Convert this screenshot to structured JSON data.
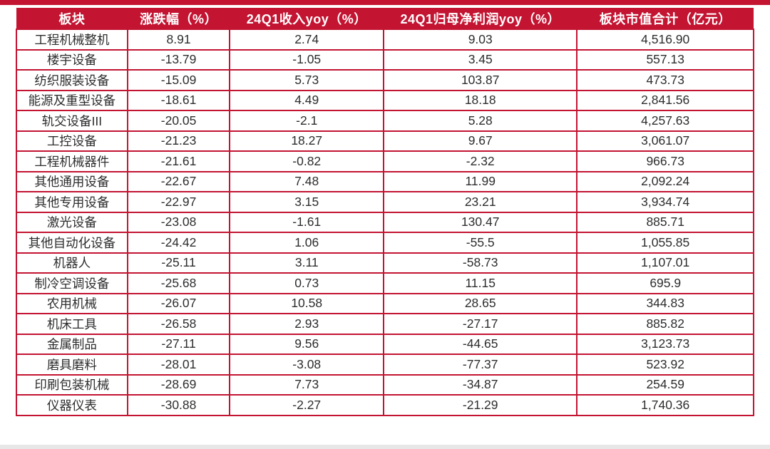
{
  "page": {
    "accent_red": "#c31432",
    "background": "#ffffff",
    "bottom_strip_color": "#e7e7e7",
    "header_text_color": "#ffffff",
    "body_text_color": "#2d2d2d"
  },
  "table": {
    "columns": [
      "板块",
      "涨跌幅（%）",
      "24Q1收入yoy（%）",
      "24Q1归母净利润yoy（%）",
      "板块市值合计（亿元）"
    ],
    "rows": [
      [
        "工程机械整机",
        "8.91",
        "2.74",
        "9.03",
        "4,516.90"
      ],
      [
        "楼宇设备",
        "-13.79",
        "-1.05",
        "3.45",
        "557.13"
      ],
      [
        "纺织服装设备",
        "-15.09",
        "5.73",
        "103.87",
        "473.73"
      ],
      [
        "能源及重型设备",
        "-18.61",
        "4.49",
        "18.18",
        "2,841.56"
      ],
      [
        "轨交设备III",
        "-20.05",
        "-2.1",
        "5.28",
        "4,257.63"
      ],
      [
        "工控设备",
        "-21.23",
        "18.27",
        "9.67",
        "3,061.07"
      ],
      [
        "工程机械器件",
        "-21.61",
        "-0.82",
        "-2.32",
        "966.73"
      ],
      [
        "其他通用设备",
        "-22.67",
        "7.48",
        "11.99",
        "2,092.24"
      ],
      [
        "其他专用设备",
        "-22.97",
        "3.15",
        "23.21",
        "3,934.74"
      ],
      [
        "激光设备",
        "-23.08",
        "-1.61",
        "130.47",
        "885.71"
      ],
      [
        "其他自动化设备",
        "-24.42",
        "1.06",
        "-55.5",
        "1,055.85"
      ],
      [
        "机器人",
        "-25.11",
        "3.11",
        "-58.73",
        "1,107.01"
      ],
      [
        "制冷空调设备",
        "-25.68",
        "0.73",
        "11.15",
        "695.9"
      ],
      [
        "农用机械",
        "-26.07",
        "10.58",
        "28.65",
        "344.83"
      ],
      [
        "机床工具",
        "-26.58",
        "2.93",
        "-27.17",
        "885.82"
      ],
      [
        "金属制品",
        "-27.11",
        "9.56",
        "-44.65",
        "3,123.73"
      ],
      [
        "磨具磨料",
        "-28.01",
        "-3.08",
        "-77.37",
        "523.92"
      ],
      [
        "印刷包装机械",
        "-28.69",
        "7.73",
        "-34.87",
        "254.59"
      ],
      [
        "仪器仪表",
        "-30.88",
        "-2.27",
        "-21.29",
        "1,740.36"
      ]
    ]
  },
  "chart_data": {
    "type": "table",
    "title": "",
    "columns": [
      "板块",
      "涨跌幅（%）",
      "24Q1收入yoy（%）",
      "24Q1归母净利润yoy（%）",
      "板块市值合计（亿元）"
    ],
    "rows": [
      {
        "sector": "工程机械整机",
        "change_pct": 8.91,
        "rev_yoy_24q1": 2.74,
        "net_profit_yoy_24q1": 9.03,
        "market_cap_100m": 4516.9
      },
      {
        "sector": "楼宇设备",
        "change_pct": -13.79,
        "rev_yoy_24q1": -1.05,
        "net_profit_yoy_24q1": 3.45,
        "market_cap_100m": 557.13
      },
      {
        "sector": "纺织服装设备",
        "change_pct": -15.09,
        "rev_yoy_24q1": 5.73,
        "net_profit_yoy_24q1": 103.87,
        "market_cap_100m": 473.73
      },
      {
        "sector": "能源及重型设备",
        "change_pct": -18.61,
        "rev_yoy_24q1": 4.49,
        "net_profit_yoy_24q1": 18.18,
        "market_cap_100m": 2841.56
      },
      {
        "sector": "轨交设备III",
        "change_pct": -20.05,
        "rev_yoy_24q1": -2.1,
        "net_profit_yoy_24q1": 5.28,
        "market_cap_100m": 4257.63
      },
      {
        "sector": "工控设备",
        "change_pct": -21.23,
        "rev_yoy_24q1": 18.27,
        "net_profit_yoy_24q1": 9.67,
        "market_cap_100m": 3061.07
      },
      {
        "sector": "工程机械器件",
        "change_pct": -21.61,
        "rev_yoy_24q1": -0.82,
        "net_profit_yoy_24q1": -2.32,
        "market_cap_100m": 966.73
      },
      {
        "sector": "其他通用设备",
        "change_pct": -22.67,
        "rev_yoy_24q1": 7.48,
        "net_profit_yoy_24q1": 11.99,
        "market_cap_100m": 2092.24
      },
      {
        "sector": "其他专用设备",
        "change_pct": -22.97,
        "rev_yoy_24q1": 3.15,
        "net_profit_yoy_24q1": 23.21,
        "market_cap_100m": 3934.74
      },
      {
        "sector": "激光设备",
        "change_pct": -23.08,
        "rev_yoy_24q1": -1.61,
        "net_profit_yoy_24q1": 130.47,
        "market_cap_100m": 885.71
      },
      {
        "sector": "其他自动化设备",
        "change_pct": -24.42,
        "rev_yoy_24q1": 1.06,
        "net_profit_yoy_24q1": -55.5,
        "market_cap_100m": 1055.85
      },
      {
        "sector": "机器人",
        "change_pct": -25.11,
        "rev_yoy_24q1": 3.11,
        "net_profit_yoy_24q1": -58.73,
        "market_cap_100m": 1107.01
      },
      {
        "sector": "制冷空调设备",
        "change_pct": -25.68,
        "rev_yoy_24q1": 0.73,
        "net_profit_yoy_24q1": 11.15,
        "market_cap_100m": 695.9
      },
      {
        "sector": "农用机械",
        "change_pct": -26.07,
        "rev_yoy_24q1": 10.58,
        "net_profit_yoy_24q1": 28.65,
        "market_cap_100m": 344.83
      },
      {
        "sector": "机床工具",
        "change_pct": -26.58,
        "rev_yoy_24q1": 2.93,
        "net_profit_yoy_24q1": -27.17,
        "market_cap_100m": 885.82
      },
      {
        "sector": "金属制品",
        "change_pct": -27.11,
        "rev_yoy_24q1": 9.56,
        "net_profit_yoy_24q1": -44.65,
        "market_cap_100m": 3123.73
      },
      {
        "sector": "磨具磨料",
        "change_pct": -28.01,
        "rev_yoy_24q1": -3.08,
        "net_profit_yoy_24q1": -77.37,
        "market_cap_100m": 523.92
      },
      {
        "sector": "印刷包装机械",
        "change_pct": -28.69,
        "rev_yoy_24q1": 7.73,
        "net_profit_yoy_24q1": -34.87,
        "market_cap_100m": 254.59
      },
      {
        "sector": "仪器仪表",
        "change_pct": -30.88,
        "rev_yoy_24q1": -2.27,
        "net_profit_yoy_24q1": -21.29,
        "market_cap_100m": 1740.36
      }
    ],
    "layout": {
      "header_background": "#c31432",
      "grid": "red-borders",
      "sort": "change_pct descending"
    }
  }
}
